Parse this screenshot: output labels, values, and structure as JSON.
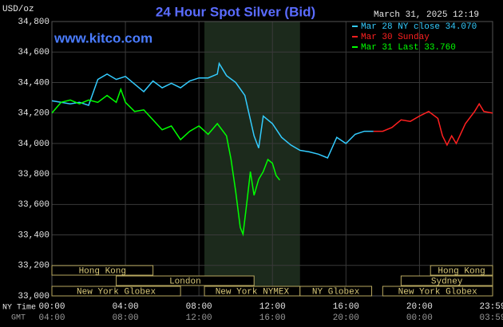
{
  "chart_data": {
    "type": "line",
    "title": "24 Hour Spot Silver (Bid)",
    "y_unit": "USD/oz",
    "timestamp": "March 31, 2025 12:19",
    "watermark": "www.kitco.com",
    "x_label": "NY Time",
    "x2_label": "GMT",
    "xlim": [
      0,
      23.98
    ],
    "xticks": [
      {
        "value": 0,
        "label": "00:00"
      },
      {
        "value": 4,
        "label": "04:00"
      },
      {
        "value": 8,
        "label": "08:00"
      },
      {
        "value": 12,
        "label": "12:00"
      },
      {
        "value": 16,
        "label": "16:00"
      },
      {
        "value": 20,
        "label": "20:00"
      },
      {
        "value": 23.98,
        "label": "23:59"
      }
    ],
    "x2ticklabels": [
      "04:00",
      "08:00",
      "12:00",
      "16:00",
      "20:00",
      "00:00",
      "03:59"
    ],
    "ylim": [
      33000,
      34800
    ],
    "yticks": [
      {
        "value": 33000,
        "label": "33,000"
      },
      {
        "value": 33200,
        "label": "33,200"
      },
      {
        "value": 33400,
        "label": "33,400"
      },
      {
        "value": 33600,
        "label": "33,600"
      },
      {
        "value": 33800,
        "label": "33,800"
      },
      {
        "value": 34000,
        "label": "34,000"
      },
      {
        "value": 34200,
        "label": "34,200"
      },
      {
        "value": 34400,
        "label": "34,400"
      },
      {
        "value": 34600,
        "label": "34,600"
      },
      {
        "value": 34800,
        "label": "34,800"
      }
    ],
    "grid": true,
    "shaded_range": [
      8.3,
      13.5
    ],
    "session_rows": [
      [
        {
          "name": "Hong Kong",
          "start": 0,
          "end": 5.5
        },
        {
          "name": "Hong Kong",
          "start": 20.6,
          "end": 23.98
        }
      ],
      [
        {
          "name": "London",
          "start": 3.5,
          "end": 11
        },
        {
          "name": "Sydney",
          "start": 19,
          "end": 23.98
        }
      ],
      [
        {
          "name": "New York Globex",
          "start": 0,
          "end": 7
        },
        {
          "name": "New York NYMEX",
          "start": 8.3,
          "end": 13.5
        },
        {
          "name": "NY Globex",
          "start": 13.5,
          "end": 17.4
        },
        {
          "name": "New York Globex",
          "start": 18,
          "end": 23.98
        }
      ]
    ],
    "series": [
      {
        "name": "Mar 28 NY close 34.070",
        "color": "#33ccff",
        "x": [
          0,
          0.5,
          1,
          1.5,
          2,
          2.5,
          3,
          3.5,
          4,
          4.5,
          5,
          5.5,
          6,
          6.5,
          7,
          7.5,
          8,
          8.5,
          9,
          9.1,
          9.5,
          10,
          10.5,
          11,
          11.25,
          11.5,
          12,
          12.5,
          13,
          13.5,
          14,
          14.5,
          15,
          15.5,
          16,
          16.5,
          17,
          17.5
        ],
        "values": [
          34280,
          34270,
          34260,
          34270,
          34250,
          34420,
          34455,
          34420,
          34440,
          34390,
          34340,
          34410,
          34365,
          34395,
          34365,
          34410,
          34430,
          34430,
          34455,
          34525,
          34445,
          34400,
          34315,
          34050,
          33970,
          34180,
          34130,
          34040,
          33990,
          33955,
          33945,
          33930,
          33905,
          34040,
          34000,
          34060,
          34080,
          34080
        ]
      },
      {
        "name": "Mar 30 Sunday",
        "color": "#ff2020",
        "x": [
          17.5,
          18,
          18.5,
          19,
          19.5,
          20,
          20.5,
          21,
          21.25,
          21.5,
          21.75,
          22,
          22.5,
          23,
          23.25,
          23.5,
          23.98
        ],
        "values": [
          34080,
          34080,
          34105,
          34155,
          34145,
          34180,
          34210,
          34165,
          34050,
          33990,
          34050,
          34000,
          34130,
          34210,
          34260,
          34210,
          34200
        ]
      },
      {
        "name": "Mar 31 Last 33.760",
        "color": "#00ff00",
        "x": [
          0,
          0.5,
          1,
          1.5,
          2,
          2.5,
          3,
          3.5,
          3.75,
          4,
          4.5,
          5,
          5.5,
          6,
          6.5,
          7,
          7.5,
          8,
          8.5,
          9,
          9.5,
          9.75,
          10,
          10.25,
          10.4,
          10.6,
          10.8,
          11,
          11.25,
          11.5,
          11.75,
          12,
          12.2,
          12.4
        ],
        "values": [
          34200,
          34270,
          34285,
          34260,
          34285,
          34270,
          34315,
          34270,
          34355,
          34270,
          34210,
          34220,
          34155,
          34090,
          34115,
          34025,
          34080,
          34115,
          34060,
          34130,
          34050,
          33895,
          33685,
          33450,
          33405,
          33605,
          33815,
          33660,
          33765,
          33815,
          33895,
          33870,
          33790,
          33760
        ]
      }
    ]
  }
}
